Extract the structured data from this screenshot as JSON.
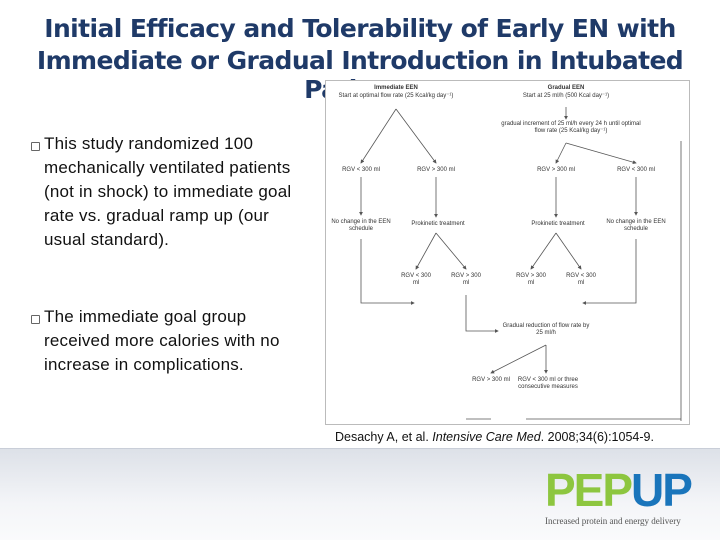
{
  "header": {
    "title_lines": [
      "Initial Efficacy and Tolerability of Early EN with",
      "Immediate or Gradual Introduction in Intubated Patients"
    ]
  },
  "bullets": [
    "This study randomized 100 mechanically ventilated patients (not in shock) to immediate goal rate vs. gradual ramp up (our usual standard).",
    "The immediate goal group received more calories with no increase in complications."
  ],
  "figure": {
    "nodes": [
      "Immediate EEN",
      "Start at optimal flow rate (25 Kcal/kg day⁻¹)",
      "Gradual EEN",
      "Start at 25 ml/h (500 Kcal day⁻¹)",
      "gradual increment of 25 ml/h every 24 h until optimal flow rate (25 Kcal/kg day⁻¹)",
      "RGV < 300 ml",
      "RGV > 300 ml",
      "RGV > 300 ml",
      "RGV < 300 ml",
      "No change in the EEN schedule",
      "Prokinetic treatment",
      "Prokinetic treatment",
      "No change in the EEN schedule",
      "RGV < 300 ml",
      "RGV > 300 ml",
      "RGV > 300 ml",
      "RGV < 300 ml",
      "Gradual reduction of flow rate by 25 ml/h",
      "RGV > 300 ml",
      "RGV < 300 ml or three consecutive measures"
    ]
  },
  "citation": {
    "authors": "Desachy A, et al. ",
    "journal": "Intensive Care Med",
    "details": ". 2008;34(6):1054-9."
  },
  "logo": {
    "left": "PEP",
    "right": "UP",
    "tagline": "Increased protein and energy delivery"
  }
}
